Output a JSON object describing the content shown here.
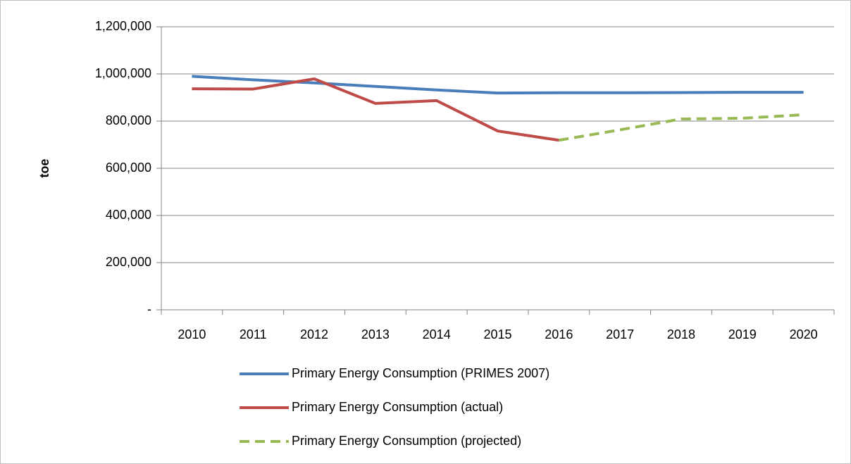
{
  "chart_data": {
    "type": "line",
    "y_label": "toe",
    "categories": [
      "2010",
      "2011",
      "2012",
      "2013",
      "2014",
      "2015",
      "2016",
      "2017",
      "2018",
      "2019",
      "2020"
    ],
    "series": [
      {
        "name": "Primary Energy Consumption (PRIMES 2007)",
        "color": "#4a7ebb",
        "dashed": false,
        "values": [
          990000,
          975000,
          962000,
          947000,
          932000,
          919000,
          920000,
          920000,
          921000,
          922000,
          922000
        ]
      },
      {
        "name": "Primary Energy Consumption (actual)",
        "color": "#be4b48",
        "dashed": false,
        "values": [
          937000,
          936000,
          979000,
          875000,
          887000,
          758000,
          719000,
          null,
          null,
          null,
          null
        ]
      },
      {
        "name": "Primary Energy Consumption (projected)",
        "color": "#98b954",
        "dashed": true,
        "values": [
          null,
          null,
          null,
          null,
          null,
          null,
          719000,
          763000,
          809000,
          812000,
          827000
        ]
      }
    ],
    "ylim": [
      0,
      1200000
    ],
    "yticks": [
      {
        "value": 0,
        "label": "-"
      },
      {
        "value": 200000,
        "label": "200,000"
      },
      {
        "value": 400000,
        "label": "400,000"
      },
      {
        "value": 600000,
        "label": "600,000"
      },
      {
        "value": 800000,
        "label": "800,000"
      },
      {
        "value": 1000000,
        "label": "1,000,000"
      },
      {
        "value": 1200000,
        "label": "1,200,000"
      }
    ],
    "grid": true,
    "legend": "bottom"
  }
}
